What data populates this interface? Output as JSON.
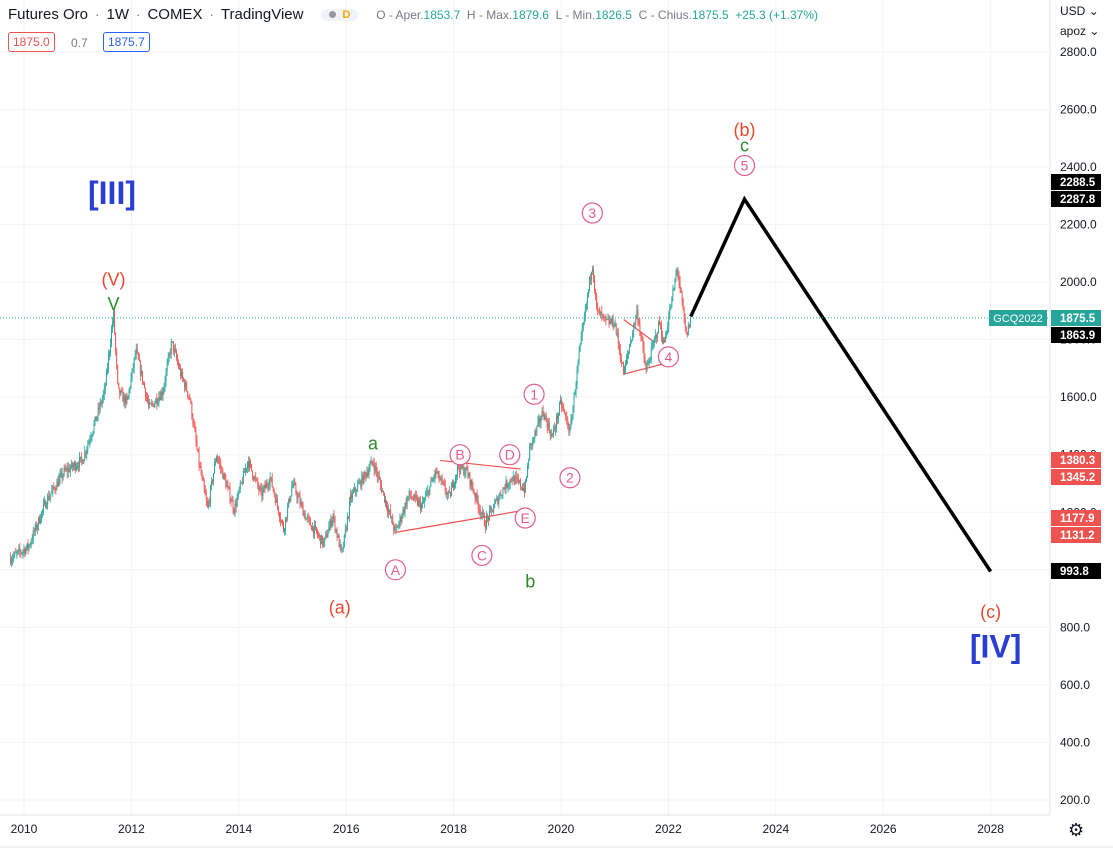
{
  "header": {
    "symbol": "Futures Oro",
    "interval": "1W",
    "exchange": "COMEX",
    "source": "TradingView",
    "badge_letter": "D",
    "open_label": "O - Aper.",
    "open": "1853.7",
    "high_label": "H - Max.",
    "high": "1879.6",
    "low_label": "L - Min.",
    "low": "1826.5",
    "close_label": "C - Chius.",
    "close": "1875.5",
    "change": "+25.3 (+1.37%)",
    "bid": "1875.0",
    "spread": "0.7",
    "ask": "1875.7"
  },
  "axis_controls": {
    "currency": "USD",
    "scale_mode": "apoz",
    "settings_icon": "gear-icon"
  },
  "colors": {
    "up": "#26a69a",
    "down": "#ef5350",
    "wave_red": "#e8492f",
    "wave_green": "#2e8b2e",
    "wave_blue": "#2a3fd1",
    "wave_pink": "#e35d8c",
    "projection": "#000000"
  },
  "chart_data": {
    "type": "candlestick",
    "interval": "1W",
    "x_axis": {
      "type": "time",
      "ticks": [
        "2010",
        "2012",
        "2014",
        "2016",
        "2018",
        "2020",
        "2022",
        "2024",
        "2026",
        "2028"
      ]
    },
    "y_axis": {
      "ticks": [
        "200.0",
        "400.0",
        "600.0",
        "800.0",
        "1000.0",
        "1200.0",
        "1400.0",
        "1600.0",
        "1800.0",
        "2000.0",
        "2200.0",
        "2400.0",
        "2600.0",
        "2800.0"
      ],
      "range": [
        150,
        2880
      ]
    },
    "price_path": [
      [
        "2009-10",
        1040
      ],
      [
        "2010-02",
        1080
      ],
      [
        "2010-06",
        1240
      ],
      [
        "2010-10",
        1340
      ],
      [
        "2011-02",
        1380
      ],
      [
        "2011-05",
        1520
      ],
      [
        "2011-07",
        1620
      ],
      [
        "2011-09",
        1890
      ],
      [
        "2011-10",
        1620
      ],
      [
        "2011-12",
        1580
      ],
      [
        "2012-02",
        1760
      ],
      [
        "2012-05",
        1560
      ],
      [
        "2012-08",
        1620
      ],
      [
        "2012-10",
        1790
      ],
      [
        "2012-12",
        1680
      ],
      [
        "2013-02",
        1600
      ],
      [
        "2013-04",
        1380
      ],
      [
        "2013-06",
        1210
      ],
      [
        "2013-08",
        1400
      ],
      [
        "2013-12",
        1210
      ],
      [
        "2014-03",
        1380
      ],
      [
        "2014-06",
        1260
      ],
      [
        "2014-08",
        1320
      ],
      [
        "2014-11",
        1140
      ],
      [
        "2015-01",
        1300
      ],
      [
        "2015-04",
        1180
      ],
      [
        "2015-08",
        1090
      ],
      [
        "2015-10",
        1190
      ],
      [
        "2015-12",
        1050
      ],
      [
        "2016-02",
        1250
      ],
      [
        "2016-07",
        1375
      ],
      [
        "2016-12",
        1130
      ],
      [
        "2017-03",
        1260
      ],
      [
        "2017-06",
        1220
      ],
      [
        "2017-09",
        1340
      ],
      [
        "2017-12",
        1250
      ],
      [
        "2018-02",
        1360
      ],
      [
        "2018-04",
        1340
      ],
      [
        "2018-08",
        1160
      ],
      [
        "2018-12",
        1280
      ],
      [
        "2019-02",
        1320
      ],
      [
        "2019-05",
        1280
      ],
      [
        "2019-06",
        1420
      ],
      [
        "2019-09",
        1550
      ],
      [
        "2019-11",
        1460
      ],
      [
        "2020-01",
        1580
      ],
      [
        "2020-03",
        1480
      ],
      [
        "2020-05",
        1740
      ],
      [
        "2020-08",
        2070
      ],
      [
        "2020-09",
        1900
      ],
      [
        "2020-11",
        1860
      ],
      [
        "2021-01",
        1860
      ],
      [
        "2021-03",
        1680
      ],
      [
        "2021-06",
        1900
      ],
      [
        "2021-08",
        1690
      ],
      [
        "2021-11",
        1860
      ],
      [
        "2021-12",
        1780
      ],
      [
        "2022-03",
        2050
      ],
      [
        "2022-05",
        1810
      ],
      [
        "2022-06",
        1875
      ]
    ],
    "last_price_label": "GCQ2022",
    "price_labels": [
      {
        "text": "2288.5",
        "color": "#000000"
      },
      {
        "text": "2287.8",
        "color": "#000000"
      },
      {
        "text": "1875.5",
        "color": "#26a69a"
      },
      {
        "text": "1863.9",
        "color": "#000000"
      },
      {
        "text": "1380.3",
        "color": "#ef5350"
      },
      {
        "text": "1345.2",
        "color": "#ef5350"
      },
      {
        "text": "1177.9",
        "color": "#ef5350"
      },
      {
        "text": "1131.2",
        "color": "#ef5350"
      },
      {
        "text": "993.8",
        "color": "#000000"
      }
    ],
    "projection": [
      [
        "2022-06",
        1880
      ],
      [
        "2023-06",
        2288
      ],
      [
        "2028-01",
        994
      ]
    ],
    "trendlines": [
      {
        "from": [
          "2016-12",
          1130
        ],
        "to": [
          "2019-04",
          1205
        ]
      },
      {
        "from": [
          "2017-10",
          1380
        ],
        "to": [
          "2019-04",
          1350
        ]
      },
      {
        "from": [
          "2021-03",
          1680
        ],
        "to": [
          "2022-01",
          1720
        ]
      },
      {
        "from": [
          "2021-03",
          1870
        ],
        "to": [
          "2021-10",
          1790
        ]
      }
    ],
    "wave_labels": [
      {
        "text": "[III]",
        "style": "blue-bracket",
        "anchor": "2011-09"
      },
      {
        "text": "(V)",
        "style": "red",
        "anchor": "2011-09"
      },
      {
        "text": "V",
        "style": "green",
        "anchor": "2011-09"
      },
      {
        "text": "(a)",
        "style": "red",
        "anchor": "2015-12"
      },
      {
        "text": "a",
        "style": "green",
        "anchor": "2016-07"
      },
      {
        "text": "b",
        "style": "green",
        "anchor": "2019-05"
      },
      {
        "text": "A",
        "style": "circled",
        "anchor": "2016-12"
      },
      {
        "text": "B",
        "style": "circled",
        "anchor": "2018-02"
      },
      {
        "text": "C",
        "style": "circled",
        "anchor": "2018-08"
      },
      {
        "text": "D",
        "style": "circled",
        "anchor": "2019-02"
      },
      {
        "text": "E",
        "style": "circled",
        "anchor": "2019-05"
      },
      {
        "text": "1",
        "style": "circled",
        "anchor": "2019-09"
      },
      {
        "text": "2",
        "style": "circled",
        "anchor": "2020-03"
      },
      {
        "text": "3",
        "style": "circled",
        "anchor": "2020-08"
      },
      {
        "text": "4",
        "style": "circled",
        "anchor": "2022-01"
      },
      {
        "text": "5",
        "style": "circled",
        "anchor": "2023-06"
      },
      {
        "text": "c",
        "style": "green",
        "anchor": "2023-06"
      },
      {
        "text": "(b)",
        "style": "red",
        "anchor": "2023-06"
      },
      {
        "text": "(c)",
        "style": "red",
        "anchor": "2028-01"
      },
      {
        "text": "[IV]",
        "style": "blue-bracket",
        "anchor": "2028-01"
      }
    ]
  }
}
